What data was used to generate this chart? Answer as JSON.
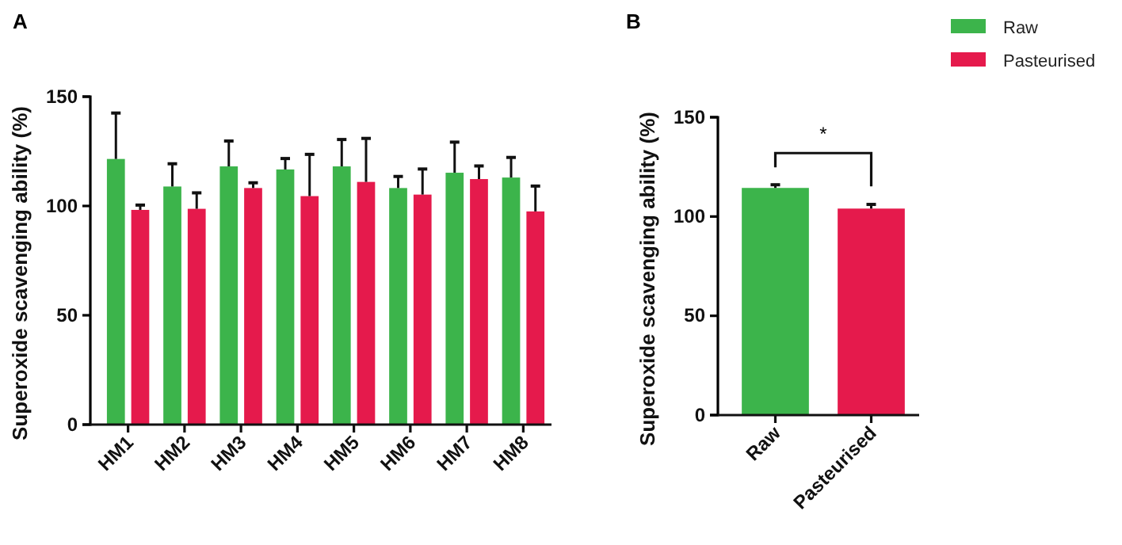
{
  "chart_data": [
    {
      "type": "bar",
      "title": "A",
      "ylabel": "Superoxide scavenging ability (%)",
      "categories": [
        "HM1",
        "HM2",
        "HM3",
        "HM4",
        "HM5",
        "HM6",
        "HM7",
        "HM8"
      ],
      "ylim": [
        0,
        150
      ],
      "yticks": [
        0,
        50,
        100,
        150
      ],
      "grid": false,
      "legend": "right",
      "series": [
        {
          "name": "Raw",
          "color": "#3cb44b",
          "values": [
            121.5,
            108.9,
            118.1,
            116.7,
            118.1,
            108.2,
            115.2,
            113
          ],
          "errors": [
            21,
            10.4,
            11.6,
            5,
            12.3,
            5.3,
            14,
            9.2
          ]
        },
        {
          "name": "Pasteurised",
          "color": "#e51a4c",
          "values": [
            98.2,
            98.7,
            108.2,
            104.5,
            111,
            105.2,
            112.3,
            97.5
          ],
          "errors": [
            2.2,
            7.3,
            2.4,
            19.1,
            19.9,
            11.7,
            6,
            11.6
          ]
        }
      ]
    },
    {
      "type": "bar",
      "title": "B",
      "ylabel": "Superoxide scavenging ability (%)",
      "categories": [
        "Raw",
        "Pasteurised"
      ],
      "ylim": [
        0,
        150
      ],
      "yticks": [
        0,
        50,
        100,
        150
      ],
      "grid": false,
      "values": [
        114.4,
        104
      ],
      "colors": [
        "#3cb44b",
        "#e51a4c"
      ],
      "errors": [
        1.6,
        2.1
      ],
      "annotations": [
        "*"
      ]
    }
  ]
}
